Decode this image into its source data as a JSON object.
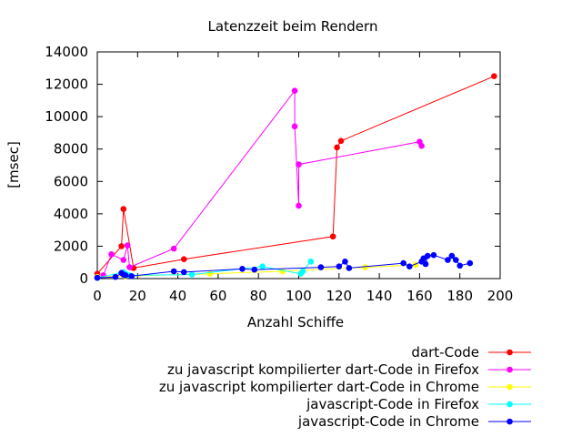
{
  "chart_data": {
    "type": "line",
    "title": "Latenzzeit beim Rendern",
    "xlabel": "Anzahl Schiffe",
    "ylabel": "[msec]",
    "xlim": [
      0,
      200
    ],
    "ylim": [
      0,
      14000
    ],
    "x_ticks": [
      "0",
      "20",
      "40",
      "60",
      "80",
      "100",
      "120",
      "140",
      "160",
      "180",
      "200"
    ],
    "y_ticks": [
      "0",
      "2000",
      "4000",
      "6000",
      "8000",
      "10000",
      "12000",
      "14000"
    ],
    "grid": false,
    "legend_position": "bottom-right",
    "series": [
      {
        "name": "dart-Code",
        "color": "#ff0000",
        "points": [
          [
            0,
            300
          ],
          [
            12,
            2000
          ],
          [
            13,
            4300
          ],
          [
            18,
            650
          ],
          [
            43,
            1200
          ],
          [
            117,
            2600
          ],
          [
            119,
            8100
          ],
          [
            121,
            8500
          ],
          [
            197,
            12500
          ]
        ]
      },
      {
        "name": "zu javascript kompilierter dart-Code in Firefox",
        "color": "#ff00ff",
        "points": [
          [
            3,
            200
          ],
          [
            7,
            1500
          ],
          [
            13,
            1150
          ],
          [
            15,
            2050
          ],
          [
            16,
            700
          ],
          [
            38,
            1850
          ],
          [
            98,
            11600
          ],
          [
            98,
            9400
          ],
          [
            100,
            4500
          ],
          [
            100,
            7050
          ],
          [
            160,
            8450
          ],
          [
            161,
            8200
          ]
        ]
      },
      {
        "name": "zu javascript kompilierter dart-Code in Chrome",
        "color": "#ffff00",
        "points": [
          [
            0,
            100
          ],
          [
            14,
            150
          ],
          [
            56,
            300
          ],
          [
            92,
            450
          ],
          [
            133,
            700
          ],
          [
            158,
            850
          ]
        ]
      },
      {
        "name": "javascript-Code in Firefox",
        "color": "#00ffff",
        "points": [
          [
            0,
            50
          ],
          [
            13,
            400
          ],
          [
            14,
            300
          ],
          [
            16,
            200
          ],
          [
            47,
            250
          ],
          [
            82,
            750
          ],
          [
            101,
            300
          ],
          [
            102,
            450
          ],
          [
            106,
            1050
          ]
        ]
      },
      {
        "name": "javascript-Code in Chrome",
        "color": "#0000ff",
        "points": [
          [
            0,
            50
          ],
          [
            9,
            100
          ],
          [
            12,
            350
          ],
          [
            13,
            250
          ],
          [
            14,
            200
          ],
          [
            17,
            150
          ],
          [
            38,
            450
          ],
          [
            43,
            400
          ],
          [
            72,
            600
          ],
          [
            78,
            550
          ],
          [
            111,
            700
          ],
          [
            120,
            750
          ],
          [
            123,
            1050
          ],
          [
            125,
            650
          ],
          [
            152,
            950
          ],
          [
            155,
            750
          ],
          [
            161,
            1050
          ],
          [
            162,
            1250
          ],
          [
            163,
            900
          ],
          [
            164,
            1400
          ],
          [
            167,
            1450
          ],
          [
            174,
            1150
          ],
          [
            176,
            1400
          ],
          [
            178,
            1150
          ],
          [
            180,
            800
          ],
          [
            185,
            950
          ]
        ]
      }
    ]
  }
}
